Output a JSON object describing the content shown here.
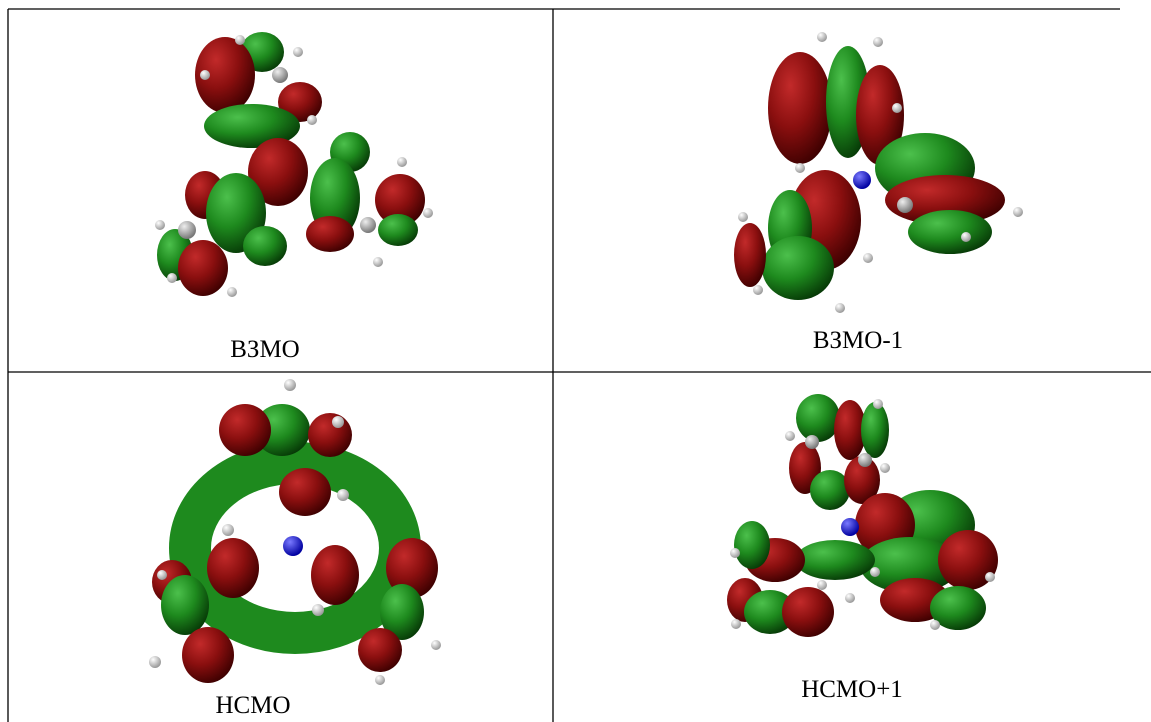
{
  "table": {
    "rows": [
      [
        "ВЗМО",
        "ВЗМО-1"
      ],
      [
        "НСМО",
        "НСМО+1"
      ]
    ]
  }
}
